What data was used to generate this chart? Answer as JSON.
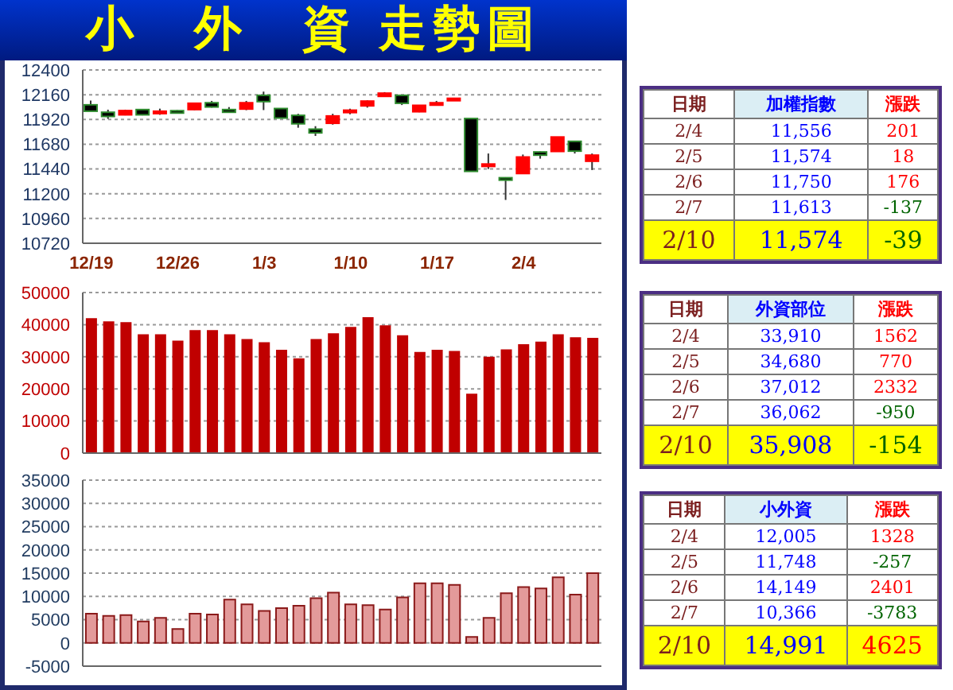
{
  "chart_data": [
    {
      "type": "candlestick",
      "title": "小　外　資 走勢圖",
      "categories": [
        "12/19",
        null,
        null,
        null,
        null,
        "12/26",
        null,
        null,
        null,
        null,
        "1/3",
        null,
        null,
        null,
        null,
        "1/10",
        null,
        null,
        null,
        null,
        "1/17",
        null,
        null,
        null,
        null,
        "2/4",
        null,
        null,
        null,
        null
      ],
      "ohlc": [
        [
          12062,
          12103,
          12000,
          12000
        ],
        [
          11990,
          12015,
          11925,
          11949
        ],
        [
          11965,
          12015,
          11960,
          12006
        ],
        [
          12016,
          12016,
          11960,
          11965
        ],
        [
          11990,
          12025,
          11965,
          12000
        ],
        [
          12005,
          12010,
          11990,
          11995
        ],
        [
          12016,
          12077,
          12010,
          12077
        ],
        [
          12082,
          12100,
          12035,
          12041
        ],
        [
          12016,
          12040,
          11985,
          11990
        ],
        [
          12021,
          12100,
          12010,
          12082
        ],
        [
          12154,
          12190,
          12011,
          12093
        ],
        [
          12026,
          12026,
          11934,
          11934
        ],
        [
          11960,
          11975,
          11840,
          11878
        ],
        [
          11826,
          11855,
          11760,
          11790
        ],
        [
          11883,
          11975,
          11870,
          11954
        ],
        [
          11995,
          12025,
          11970,
          12010
        ],
        [
          12052,
          12105,
          12035,
          12098
        ],
        [
          12144,
          12185,
          12140,
          12175
        ],
        [
          12154,
          12154,
          12060,
          12077
        ],
        [
          11995,
          12057,
          11990,
          12057
        ],
        [
          12070,
          12100,
          12060,
          12082
        ],
        [
          12110,
          12130,
          12110,
          12125
        ],
        [
          11929,
          11929,
          11417,
          11417
        ],
        [
          11480,
          11590,
          11440,
          11488
        ],
        [
          11355,
          11360,
          11140,
          11355
        ],
        [
          11396,
          11580,
          11396,
          11556
        ],
        [
          11605,
          11610,
          11540,
          11574
        ],
        [
          11610,
          11750,
          11606,
          11750
        ],
        [
          11708,
          11708,
          11590,
          11613
        ],
        [
          11515,
          11590,
          11430,
          11574
        ]
      ],
      "colors": [
        "#000000",
        "#000000",
        "#ff0000",
        "#000000",
        "#ff0000",
        "#000000",
        "#ff0000",
        "#000000",
        "#000000",
        "#ff0000",
        "#000000",
        "#000000",
        "#000000",
        "#000000",
        "#ff0000",
        "#ff0000",
        "#ff0000",
        "#ff0000",
        "#000000",
        "#ff0000",
        "#ff0000",
        "#ff0000",
        "#000000",
        "#ff0000",
        "#000000",
        "#ff0000",
        "#000000",
        "#ff0000",
        "#000000",
        "#ff0000"
      ],
      "ylim": [
        10720,
        12400
      ],
      "yticks": [
        10720,
        10960,
        11200,
        11440,
        11680,
        11920,
        12160,
        12400
      ],
      "grid": "y"
    },
    {
      "type": "bar",
      "categories": [
        null,
        null,
        null,
        null,
        null,
        null,
        null,
        null,
        null,
        null,
        null,
        null,
        null,
        null,
        null,
        null,
        null,
        null,
        null,
        null,
        null,
        null,
        null,
        null,
        null,
        null,
        null,
        null,
        null,
        null
      ],
      "values": [
        42000,
        41000,
        40800,
        37000,
        37000,
        35000,
        38300,
        38300,
        37000,
        35500,
        34500,
        32200,
        29500,
        35500,
        37300,
        39300,
        42300,
        39800,
        36700,
        31500,
        32200,
        31800,
        18500,
        30000,
        32300,
        33900,
        34700,
        37000,
        36100,
        35900
      ],
      "color": "#c00000",
      "ylim": [
        0,
        50000
      ],
      "yticks": [
        0,
        10000,
        20000,
        30000,
        40000,
        50000
      ],
      "grid": "y",
      "tick_labels": "y"
    },
    {
      "type": "bar",
      "categories": [
        null,
        null,
        null,
        null,
        null,
        null,
        null,
        null,
        null,
        null,
        null,
        null,
        null,
        null,
        null,
        null,
        null,
        null,
        null,
        null,
        null,
        null,
        null,
        null,
        null,
        null,
        null,
        null,
        null,
        null
      ],
      "values": [
        6300,
        5800,
        6000,
        4600,
        5400,
        3000,
        6300,
        6100,
        9300,
        8300,
        6900,
        7500,
        8000,
        9600,
        10800,
        8300,
        8100,
        7200,
        9800,
        12800,
        12800,
        12500,
        1300,
        5400,
        10700,
        12000,
        11700,
        14100,
        10400,
        15000
      ],
      "color": "#e39a9a",
      "ylim": [
        -5000,
        35000
      ],
      "yticks": [
        -5000,
        0,
        5000,
        10000,
        15000,
        20000,
        25000,
        30000,
        35000
      ],
      "grid": "y",
      "tick_labels": "y"
    },
    {
      "type": "other",
      "categories": [
        "日期",
        "加權指數",
        "漲跌"
      ],
      "annotations": [
        "2/4",
        "11,556",
        "201",
        "2/5",
        "11,574",
        "18",
        "2/6",
        "11,750",
        "176",
        "2/7",
        "11,613",
        "-137",
        "2/10",
        "11,574",
        "-39"
      ]
    },
    {
      "type": "other",
      "categories": [
        "日期",
        "外資部位",
        "漲跌"
      ],
      "annotations": [
        "2/4",
        "33,910",
        "1562",
        "2/5",
        "34,680",
        "770",
        "2/6",
        "37,012",
        "2332",
        "2/7",
        "36,062",
        "-950",
        "2/10",
        "35,908",
        "-154"
      ]
    },
    {
      "type": "other",
      "categories": [
        "日期",
        "小外資",
        "漲跌"
      ],
      "annotations": [
        "2/4",
        "12,005",
        "1328",
        "2/5",
        "11,748",
        "-257",
        "2/6",
        "14,149",
        "2401",
        "2/7",
        "10,366",
        "-3783",
        "2/10",
        "14,991",
        "4625"
      ]
    }
  ]
}
